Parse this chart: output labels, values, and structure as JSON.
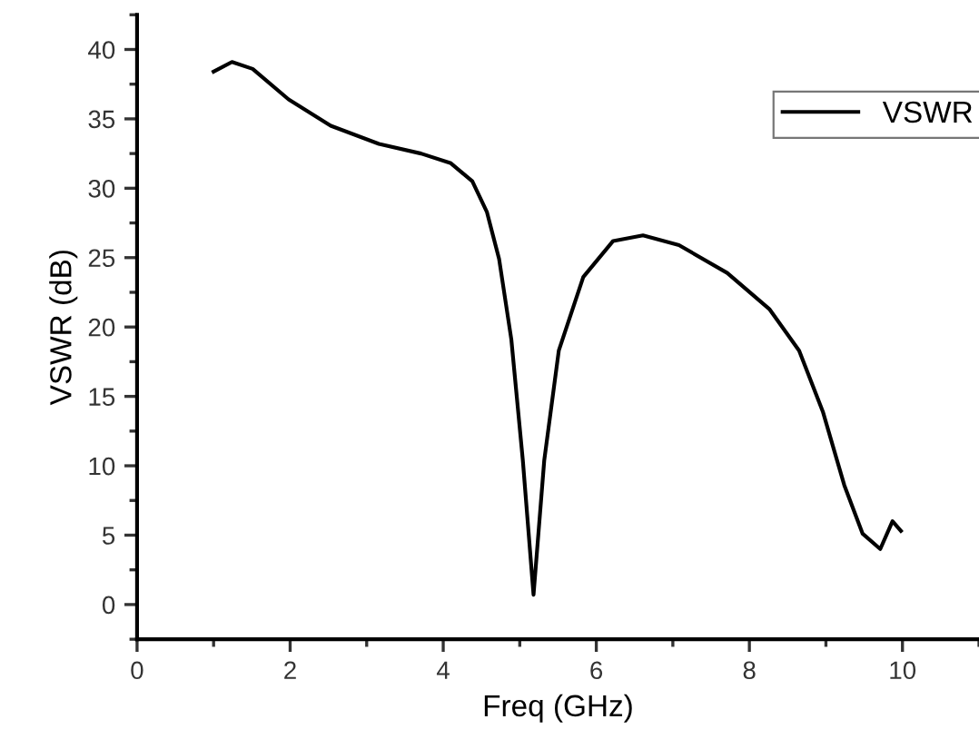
{
  "chart_data": {
    "type": "line",
    "xlabel": "Freq (GHz)",
    "ylabel": "VSWR (dB)",
    "x": [
      1.0,
      1.24,
      1.51,
      1.98,
      2.53,
      3.16,
      3.71,
      4.1,
      4.38,
      4.57,
      4.73,
      4.89,
      5.04,
      5.18,
      5.32,
      5.51,
      5.83,
      6.22,
      6.61,
      7.08,
      7.71,
      8.26,
      8.65,
      8.96,
      9.24,
      9.48,
      9.71,
      9.87,
      9.98
    ],
    "series": [
      {
        "name": "VSWR",
        "color": "#000000",
        "values": [
          38.4,
          39.1,
          38.6,
          36.4,
          34.5,
          33.2,
          32.5,
          31.8,
          30.5,
          28.3,
          24.9,
          19.1,
          10.4,
          0.7,
          10.4,
          18.3,
          23.6,
          26.2,
          26.6,
          25.9,
          23.9,
          21.3,
          18.3,
          13.9,
          8.6,
          5.1,
          4.0,
          6.0,
          5.3
        ]
      }
    ],
    "xlim": [
      0,
      11
    ],
    "xticks": [
      0,
      2,
      4,
      6,
      8,
      10
    ],
    "ylim": [
      -2.5,
      42.5
    ],
    "yticks": [
      0,
      5,
      10,
      15,
      20,
      25,
      30,
      35,
      40
    ],
    "grid": false,
    "legend": "top right",
    "marker": "none",
    "line_style": "solid"
  }
}
